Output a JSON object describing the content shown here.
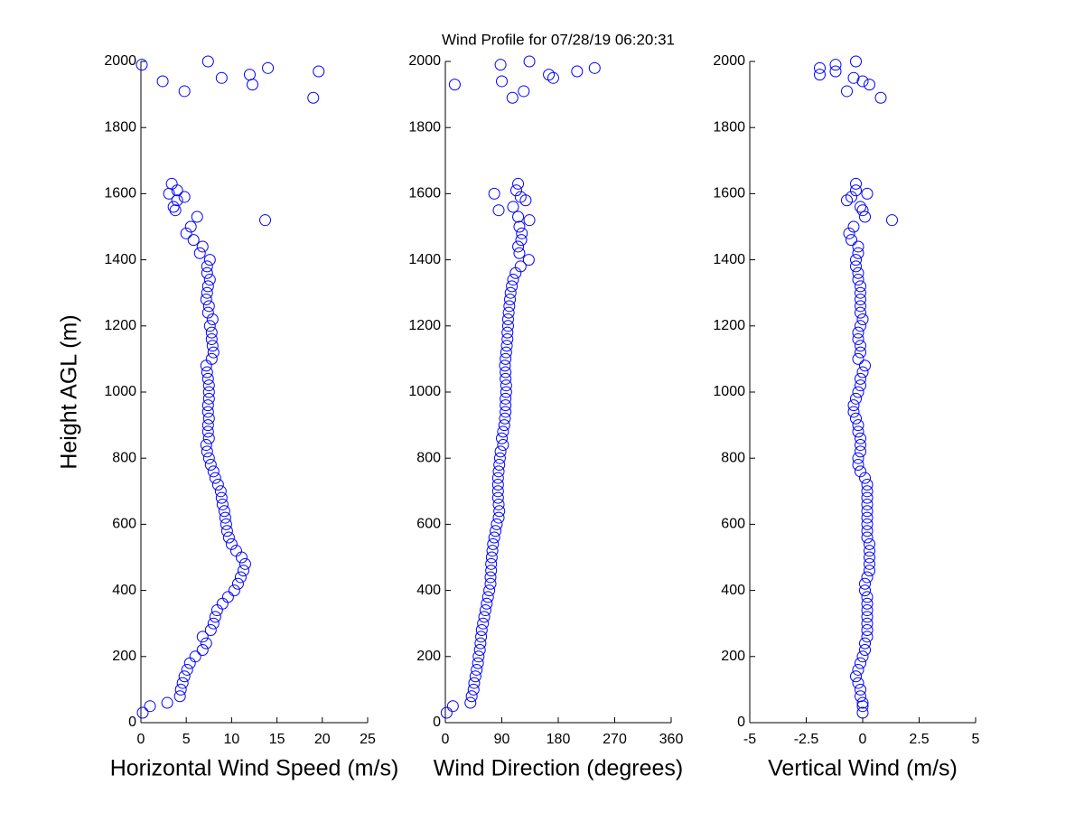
{
  "chart_data": [
    {
      "type": "scatter",
      "y_label": "Height AGL (m)",
      "x_label": "Horizontal Wind Speed (m/s)",
      "color": "#0000ff",
      "xlim": [
        0,
        25
      ],
      "xticks": [
        0,
        5,
        10,
        15,
        20,
        25
      ],
      "ylim": [
        0,
        2000
      ],
      "yticks": [
        0,
        200,
        400,
        600,
        800,
        1000,
        1200,
        1400,
        1600,
        1800,
        2000
      ],
      "x": [
        0.2,
        1.0,
        2.9,
        4.3,
        4.4,
        4.6,
        4.8,
        5.1,
        5.4,
        6.0,
        6.8,
        7.2,
        6.8,
        7.7,
        8.0,
        8.2,
        8.4,
        9.0,
        9.6,
        10.3,
        10.7,
        11.0,
        11.3,
        11.5,
        11.1,
        10.5,
        10.0,
        9.7,
        9.5,
        9.4,
        9.3,
        9.2,
        9.0,
        8.9,
        8.8,
        8.5,
        8.2,
        8.0,
        7.7,
        7.5,
        7.3,
        7.2,
        7.5,
        7.4,
        7.4,
        7.5,
        7.4,
        7.4,
        7.5,
        7.5,
        7.5,
        7.4,
        7.3,
        7.2,
        7.8,
        8.0,
        7.9,
        7.8,
        7.8,
        7.6,
        7.9,
        7.4,
        7.5,
        7.2,
        7.3,
        7.4,
        7.6,
        7.3,
        7.3,
        7.6,
        6.5,
        6.8,
        5.8,
        5.0,
        5.5,
        13.7,
        6.2,
        3.8,
        3.6,
        4.0,
        4.8,
        3.1,
        4.0,
        3.4,
        19.0,
        4.8,
        12.3,
        2.4,
        8.9,
        12.0,
        19.6,
        14.0,
        0.1,
        7.4
      ],
      "y": [
        30,
        50,
        60,
        80,
        100,
        120,
        140,
        160,
        180,
        200,
        220,
        240,
        260,
        280,
        300,
        320,
        340,
        360,
        380,
        400,
        420,
        440,
        460,
        480,
        500,
        520,
        540,
        560,
        580,
        600,
        620,
        640,
        660,
        680,
        700,
        720,
        740,
        760,
        780,
        800,
        820,
        840,
        860,
        880,
        900,
        920,
        940,
        960,
        980,
        1000,
        1020,
        1040,
        1060,
        1080,
        1100,
        1120,
        1140,
        1160,
        1180,
        1200,
        1220,
        1240,
        1260,
        1280,
        1300,
        1320,
        1340,
        1360,
        1380,
        1400,
        1420,
        1440,
        1460,
        1480,
        1500,
        1520,
        1530,
        1550,
        1560,
        1580,
        1590,
        1600,
        1610,
        1630,
        1890,
        1910,
        1930,
        1940,
        1950,
        1960,
        1970,
        1980,
        1990,
        2000
      ]
    },
    {
      "type": "scatter",
      "title": "Wind Profile for  07/28/19 06:20:31",
      "x_label": "Wind Direction (degrees)",
      "color": "#0000ff",
      "xlim": [
        0,
        360
      ],
      "xticks": [
        0,
        90,
        180,
        270,
        360
      ],
      "ylim": [
        0,
        2000
      ],
      "yticks": [
        0,
        200,
        400,
        600,
        800,
        1000,
        1200,
        1400,
        1600,
        1800,
        2000
      ],
      "x": [
        2,
        12,
        40,
        42,
        45,
        46,
        48,
        50,
        52,
        53,
        55,
        56,
        57,
        58,
        60,
        62,
        64,
        66,
        68,
        70,
        72,
        72,
        73,
        73,
        74,
        75,
        76,
        78,
        80,
        82,
        85,
        86,
        85,
        84,
        84,
        84,
        84,
        85,
        86,
        87,
        88,
        92,
        90,
        92,
        94,
        95,
        96,
        96,
        96,
        97,
        97,
        96,
        96,
        95,
        96,
        97,
        98,
        99,
        99,
        100,
        100,
        101,
        102,
        103,
        104,
        106,
        108,
        112,
        120,
        133,
        118,
        116,
        121,
        122,
        118,
        134,
        116,
        85,
        108,
        128,
        120,
        78,
        113,
        116,
        107,
        125,
        15,
        90,
        172,
        165,
        210,
        238,
        88,
        134
      ],
      "y": [
        30,
        50,
        60,
        80,
        100,
        120,
        140,
        160,
        180,
        200,
        220,
        240,
        260,
        280,
        300,
        320,
        340,
        360,
        380,
        400,
        420,
        440,
        460,
        480,
        500,
        520,
        540,
        560,
        580,
        600,
        620,
        640,
        660,
        680,
        700,
        720,
        740,
        760,
        780,
        800,
        820,
        840,
        860,
        880,
        900,
        920,
        940,
        960,
        980,
        1000,
        1020,
        1040,
        1060,
        1080,
        1100,
        1120,
        1140,
        1160,
        1180,
        1200,
        1220,
        1240,
        1260,
        1280,
        1300,
        1320,
        1340,
        1360,
        1380,
        1400,
        1420,
        1440,
        1460,
        1480,
        1500,
        1520,
        1530,
        1550,
        1560,
        1580,
        1590,
        1600,
        1610,
        1630,
        1890,
        1910,
        1930,
        1940,
        1950,
        1960,
        1970,
        1980,
        1990,
        2000
      ]
    },
    {
      "type": "scatter",
      "x_label": "Vertical Wind (m/s)",
      "color": "#0000ff",
      "xlim": [
        -5,
        5
      ],
      "xticks": [
        -5,
        -2.5,
        0,
        2.5,
        5
      ],
      "ylim": [
        0,
        2000
      ],
      "yticks": [
        0,
        200,
        400,
        600,
        800,
        1000,
        1200,
        1400,
        1600,
        1800,
        2000
      ],
      "x": [
        0.0,
        0.0,
        0.0,
        -0.1,
        -0.1,
        -0.2,
        -0.3,
        -0.2,
        -0.1,
        0.0,
        0.1,
        0.1,
        0.2,
        0.2,
        0.2,
        0.2,
        0.2,
        0.2,
        0.2,
        0.1,
        0.1,
        0.2,
        0.3,
        0.3,
        0.3,
        0.3,
        0.3,
        0.2,
        0.2,
        0.2,
        0.2,
        0.2,
        0.2,
        0.2,
        0.2,
        0.2,
        0.1,
        -0.1,
        -0.2,
        -0.2,
        -0.1,
        -0.1,
        -0.1,
        -0.2,
        -0.2,
        -0.3,
        -0.4,
        -0.4,
        -0.3,
        -0.2,
        -0.1,
        -0.1,
        0.0,
        0.1,
        -0.2,
        -0.1,
        -0.1,
        -0.2,
        -0.2,
        -0.1,
        0.0,
        -0.1,
        -0.1,
        -0.1,
        -0.1,
        -0.1,
        -0.2,
        -0.2,
        -0.3,
        -0.3,
        -0.2,
        -0.2,
        -0.5,
        -0.6,
        -0.4,
        1.3,
        0.1,
        0.0,
        -0.1,
        -0.7,
        -0.5,
        0.2,
        -0.3,
        -0.3,
        0.8,
        -0.7,
        0.3,
        0.0,
        -0.4,
        -1.9,
        -1.2,
        -1.9,
        -1.2,
        -0.3
      ],
      "y": [
        30,
        50,
        60,
        80,
        100,
        120,
        140,
        160,
        180,
        200,
        220,
        240,
        260,
        280,
        300,
        320,
        340,
        360,
        380,
        400,
        420,
        440,
        460,
        480,
        500,
        520,
        540,
        560,
        580,
        600,
        620,
        640,
        660,
        680,
        700,
        720,
        740,
        760,
        780,
        800,
        820,
        840,
        860,
        880,
        900,
        920,
        940,
        960,
        980,
        1000,
        1020,
        1040,
        1060,
        1080,
        1100,
        1120,
        1140,
        1160,
        1180,
        1200,
        1220,
        1240,
        1260,
        1280,
        1300,
        1320,
        1340,
        1360,
        1380,
        1400,
        1420,
        1440,
        1460,
        1480,
        1500,
        1520,
        1530,
        1550,
        1560,
        1580,
        1590,
        1600,
        1610,
        1630,
        1890,
        1910,
        1930,
        1940,
        1950,
        1960,
        1970,
        1980,
        1990,
        2000
      ]
    }
  ]
}
